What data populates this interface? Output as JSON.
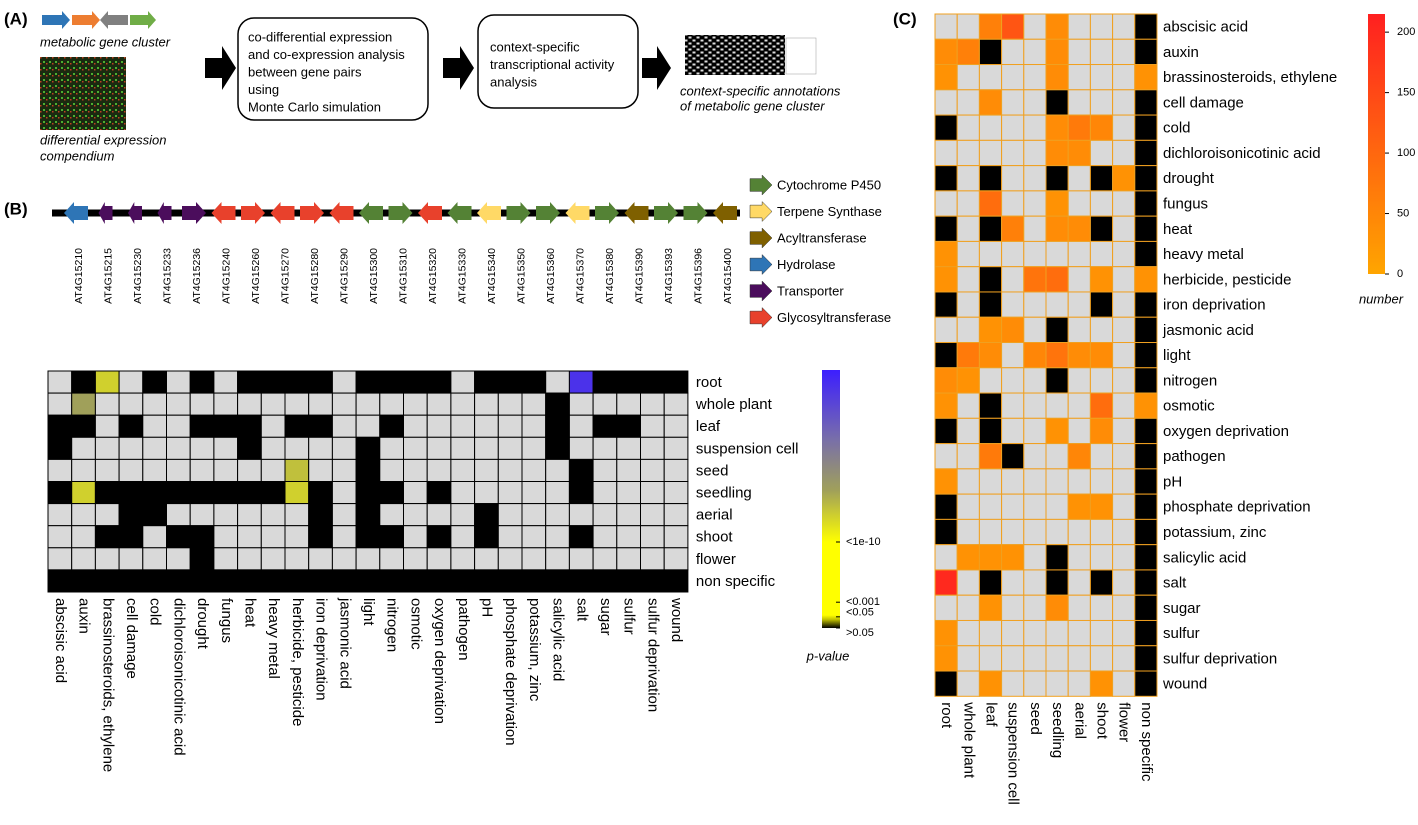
{
  "panel_labels": [
    "(A)",
    "(B)",
    "(C)"
  ],
  "workflow": {
    "cluster_label": "metabolic gene cluster",
    "compendium_label": [
      "differential expression",
      "compendium"
    ],
    "steps": [
      [
        "co-differential expression",
        "and co-expression analysis",
        "between gene pairs",
        "using",
        "Monte Carlo simulation"
      ],
      [
        "context-specific",
        "transcriptional activity",
        "analysis"
      ]
    ],
    "result_label": [
      "context-specific annotations",
      "of metabolic gene cluster"
    ]
  },
  "gene_cluster": {
    "legend": [
      {
        "name": "Cytochrome P450",
        "color": "#548235"
      },
      {
        "name": "Terpene Synthase",
        "color": "#ffd966"
      },
      {
        "name": "Acyltransferase",
        "color": "#7f6000"
      },
      {
        "name": "Hydrolase",
        "color": "#2e75b6"
      },
      {
        "name": "Transporter",
        "color": "#4b0d5c"
      },
      {
        "name": "Glycosyltransferase",
        "color": "#e8412c"
      }
    ],
    "genes": [
      {
        "label": "AT4G15210",
        "class": "Hydrolase",
        "strand": "-"
      },
      {
        "label": "AT4G15215",
        "class": "Transporter",
        "strand": "-"
      },
      {
        "label": "AT4G15230",
        "class": "Transporter",
        "strand": "-"
      },
      {
        "label": "AT4G15233",
        "class": "Transporter",
        "strand": "-"
      },
      {
        "label": "AT4G15236",
        "class": "Transporter",
        "strand": "+"
      },
      {
        "label": "AT4G15240",
        "class": "Glycosyltransferase",
        "strand": "-"
      },
      {
        "label": "AT4G15260",
        "class": "Glycosyltransferase",
        "strand": "+"
      },
      {
        "label": "AT4G15270",
        "class": "Glycosyltransferase",
        "strand": "-"
      },
      {
        "label": "AT4G15280",
        "class": "Glycosyltransferase",
        "strand": "+"
      },
      {
        "label": "AT4G15290",
        "class": "Glycosyltransferase",
        "strand": "-"
      },
      {
        "label": "AT4G15300",
        "class": "Cytochrome P450",
        "strand": "-"
      },
      {
        "label": "AT4G15310",
        "class": "Cytochrome P450",
        "strand": "+"
      },
      {
        "label": "AT4G15320",
        "class": "Glycosyltransferase",
        "strand": "-"
      },
      {
        "label": "AT4G15330",
        "class": "Cytochrome P450",
        "strand": "-"
      },
      {
        "label": "AT4G15340",
        "class": "Terpene Synthase",
        "strand": "-"
      },
      {
        "label": "AT4G15350",
        "class": "Cytochrome P450",
        "strand": "+"
      },
      {
        "label": "AT4G15360",
        "class": "Cytochrome P450",
        "strand": "+"
      },
      {
        "label": "AT4G15370",
        "class": "Terpene Synthase",
        "strand": "-"
      },
      {
        "label": "AT4G15380",
        "class": "Cytochrome P450",
        "strand": "+"
      },
      {
        "label": "AT4G15390",
        "class": "Acyltransferase",
        "strand": "-"
      },
      {
        "label": "AT4G15393",
        "class": "Cytochrome P450",
        "strand": "+"
      },
      {
        "label": "AT4G15396",
        "class": "Cytochrome P450",
        "strand": "+"
      },
      {
        "label": "AT4G15400",
        "class": "Acyltransferase",
        "strand": "-"
      }
    ]
  },
  "pvalue_heatmap": {
    "rows": [
      "root",
      "whole plant",
      "leaf",
      "suspension cell",
      "seed",
      "seedling",
      "aerial",
      "shoot",
      "flower",
      "non specific"
    ],
    "columns": [
      "abscisic acid",
      "auxin",
      "brassinosteroids, ethylene",
      "cell damage",
      "cold",
      "dichloroisonicotinic acid",
      "drought",
      "fungus",
      "heat",
      "heavy metal",
      "herbicide, pesticide",
      "iron deprivation",
      "jasmonic acid",
      "light",
      "nitrogen",
      "osmotic",
      "oxygen deprivation",
      "pathogen",
      "pH",
      "phosphate deprivation",
      "potassium, zinc",
      "salicylic acid",
      "salt",
      "sugar",
      "sulfur",
      "sulfur deprivation",
      "wound"
    ],
    "values": [
      [
        null,
        0,
        13,
        null,
        0,
        null,
        0,
        null,
        0,
        0,
        0,
        0,
        null,
        0,
        0,
        0,
        0,
        null,
        0,
        0,
        0,
        null,
        28,
        0,
        0,
        0,
        0
      ],
      [
        null,
        16,
        null,
        null,
        null,
        null,
        null,
        null,
        null,
        null,
        null,
        null,
        null,
        null,
        null,
        null,
        null,
        null,
        null,
        null,
        null,
        0,
        null,
        null,
        null,
        null,
        null
      ],
      [
        0,
        0,
        null,
        0,
        null,
        null,
        0,
        0,
        0,
        null,
        0,
        0,
        null,
        null,
        0,
        null,
        null,
        null,
        null,
        null,
        null,
        0,
        null,
        0,
        0,
        null,
        null
      ],
      [
        0,
        null,
        null,
        null,
        null,
        null,
        null,
        null,
        0,
        null,
        null,
        null,
        null,
        0,
        null,
        null,
        null,
        null,
        null,
        null,
        null,
        0,
        null,
        null,
        null,
        null,
        null
      ],
      [
        null,
        null,
        null,
        null,
        null,
        null,
        null,
        null,
        null,
        null,
        14,
        null,
        null,
        0,
        null,
        null,
        null,
        null,
        null,
        null,
        null,
        null,
        0,
        null,
        null,
        null,
        null
      ],
      [
        0,
        13,
        0,
        0,
        0,
        0,
        0,
        0,
        0,
        0,
        13,
        0,
        null,
        0,
        0,
        null,
        0,
        null,
        null,
        null,
        null,
        null,
        0,
        null,
        null,
        null,
        null
      ],
      [
        null,
        null,
        null,
        0,
        0,
        null,
        null,
        null,
        null,
        null,
        null,
        0,
        null,
        0,
        null,
        null,
        null,
        null,
        0,
        null,
        null,
        null,
        null,
        null,
        null,
        null,
        null
      ],
      [
        null,
        null,
        0,
        0,
        null,
        0,
        0,
        null,
        null,
        null,
        null,
        0,
        null,
        0,
        0,
        null,
        0,
        null,
        0,
        null,
        null,
        null,
        0,
        null,
        null,
        null,
        null
      ],
      [
        null,
        null,
        null,
        null,
        null,
        null,
        0,
        null,
        null,
        null,
        null,
        null,
        null,
        null,
        null,
        null,
        null,
        null,
        null,
        null,
        null,
        null,
        null,
        null,
        null,
        null,
        null
      ],
      [
        0,
        0,
        0,
        0,
        0,
        0,
        0,
        0,
        0,
        0,
        0,
        0,
        0,
        0,
        0,
        0,
        0,
        0,
        0,
        0,
        0,
        0,
        0,
        0,
        0,
        0,
        0
      ]
    ],
    "missing_color": "#d9d9d9",
    "colorbar_title": "p-value",
    "clim": [
      0,
      30
    ],
    "cticks": [
      {
        "value": 10,
        "label": "<1e-10"
      },
      {
        "value": 3,
        "label": "<0.001"
      },
      {
        "value": 1.3,
        "label": "<0.05"
      },
      {
        "value": 0,
        "label": ">0.05"
      }
    ]
  },
  "count_heatmap": {
    "rows": [
      "abscisic acid",
      "auxin",
      "brassinosteroids, ethylene",
      "cell damage",
      "cold",
      "dichloroisonicotinic acid",
      "drought",
      "fungus",
      "heat",
      "heavy metal",
      "herbicide, pesticide",
      "iron deprivation",
      "jasmonic acid",
      "light",
      "nitrogen",
      "osmotic",
      "oxygen deprivation",
      "pathogen",
      "pH",
      "phosphate deprivation",
      "potassium, zinc",
      "salicylic acid",
      "salt",
      "sugar",
      "sulfur",
      "sulfur deprivation",
      "wound"
    ],
    "columns": [
      "root",
      "whole plant",
      "leaf",
      "suspension cell",
      "seed",
      "seedling",
      "aerial",
      "shoot",
      "flower",
      "non specific"
    ],
    "values": [
      [
        null,
        null,
        60,
        130,
        null,
        40,
        null,
        null,
        null,
        0
      ],
      [
        40,
        60,
        0,
        null,
        null,
        40,
        null,
        null,
        null,
        0
      ],
      [
        30,
        null,
        null,
        null,
        null,
        40,
        null,
        null,
        null,
        30
      ],
      [
        null,
        null,
        40,
        null,
        null,
        0,
        null,
        null,
        null,
        0
      ],
      [
        0,
        null,
        null,
        null,
        null,
        40,
        70,
        50,
        null,
        0
      ],
      [
        null,
        null,
        null,
        null,
        null,
        40,
        40,
        null,
        null,
        0
      ],
      [
        0,
        null,
        0,
        null,
        null,
        0,
        null,
        0,
        30,
        0
      ],
      [
        null,
        null,
        90,
        null,
        null,
        30,
        null,
        null,
        null,
        0
      ],
      [
        0,
        null,
        0,
        60,
        null,
        40,
        40,
        0,
        null,
        0
      ],
      [
        30,
        null,
        null,
        null,
        null,
        null,
        null,
        null,
        null,
        0
      ],
      [
        30,
        null,
        0,
        null,
        80,
        90,
        null,
        30,
        null,
        30
      ],
      [
        0,
        null,
        0,
        null,
        null,
        null,
        null,
        0,
        null,
        0
      ],
      [
        null,
        null,
        30,
        40,
        null,
        0,
        null,
        null,
        null,
        0
      ],
      [
        0,
        70,
        40,
        null,
        50,
        80,
        40,
        40,
        null,
        0
      ],
      [
        40,
        30,
        null,
        null,
        null,
        0,
        null,
        null,
        null,
        0
      ],
      [
        30,
        null,
        0,
        null,
        null,
        null,
        null,
        90,
        null,
        30
      ],
      [
        0,
        null,
        0,
        null,
        null,
        30,
        null,
        40,
        null,
        0
      ],
      [
        null,
        null,
        70,
        0,
        null,
        null,
        50,
        null,
        null,
        0
      ],
      [
        30,
        null,
        null,
        null,
        null,
        null,
        null,
        null,
        null,
        0
      ],
      [
        0,
        null,
        null,
        null,
        null,
        null,
        30,
        30,
        null,
        0
      ],
      [
        0,
        null,
        null,
        null,
        null,
        null,
        null,
        null,
        null,
        0
      ],
      [
        null,
        30,
        30,
        30,
        null,
        0,
        null,
        null,
        null,
        0
      ],
      [
        200,
        null,
        0,
        null,
        null,
        0,
        null,
        0,
        null,
        0
      ],
      [
        null,
        null,
        30,
        null,
        null,
        40,
        null,
        null,
        null,
        0
      ],
      [
        30,
        null,
        null,
        null,
        null,
        null,
        null,
        null,
        null,
        0
      ],
      [
        30,
        null,
        null,
        null,
        null,
        null,
        null,
        null,
        null,
        0
      ],
      [
        0,
        null,
        30,
        null,
        null,
        null,
        null,
        30,
        null,
        0
      ]
    ],
    "missing_color": "#d9d9d9",
    "zero_color": "#000000",
    "low_color": "#ffa500",
    "high_color": "#ff2020",
    "colorbar_title": "number",
    "clim": [
      0,
      215
    ],
    "cticks": [
      0,
      50,
      100,
      150,
      200
    ]
  }
}
